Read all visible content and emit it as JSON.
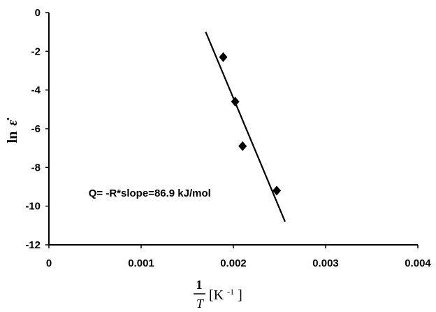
{
  "chart_data": {
    "type": "scatter",
    "title": "",
    "xlabel": {
      "numerator": "1",
      "denominator": "T",
      "unit_base": "[K",
      "unit_exp": "-1",
      "unit_close": "]"
    },
    "ylabel": {
      "prefix": "ln",
      "symbol": "ε̇"
    },
    "xlim": [
      0,
      0.004
    ],
    "ylim": [
      -12,
      0
    ],
    "xticks": [
      0,
      0.001,
      0.002,
      0.003,
      0.004
    ],
    "xtick_labels": [
      "0",
      "0.001",
      "0.002",
      "0.003",
      "0.004"
    ],
    "yticks": [
      0,
      -2,
      -4,
      -6,
      -8,
      -10,
      -12
    ],
    "ytick_labels": [
      "0",
      "-2",
      "-4",
      "-6",
      "-8",
      "-10",
      "-12"
    ],
    "grid": false,
    "legend": "none",
    "series": [
      {
        "marker": "diamond",
        "x": [
          0.00189,
          0.00202,
          0.0021,
          0.00247
        ],
        "y": [
          -2.3,
          -4.6,
          -6.9,
          -9.2
        ]
      }
    ],
    "fit_line": {
      "x": [
        0.0017,
        0.00256
      ],
      "y": [
        -1.0,
        -10.8
      ]
    },
    "annotation": {
      "text": "Q= -R*slope=86.9 kJ/mol",
      "x": 0.00043,
      "y": -9.5
    },
    "colors": {
      "marker": "#000000",
      "line": "#000000",
      "axis": "#000000"
    }
  }
}
